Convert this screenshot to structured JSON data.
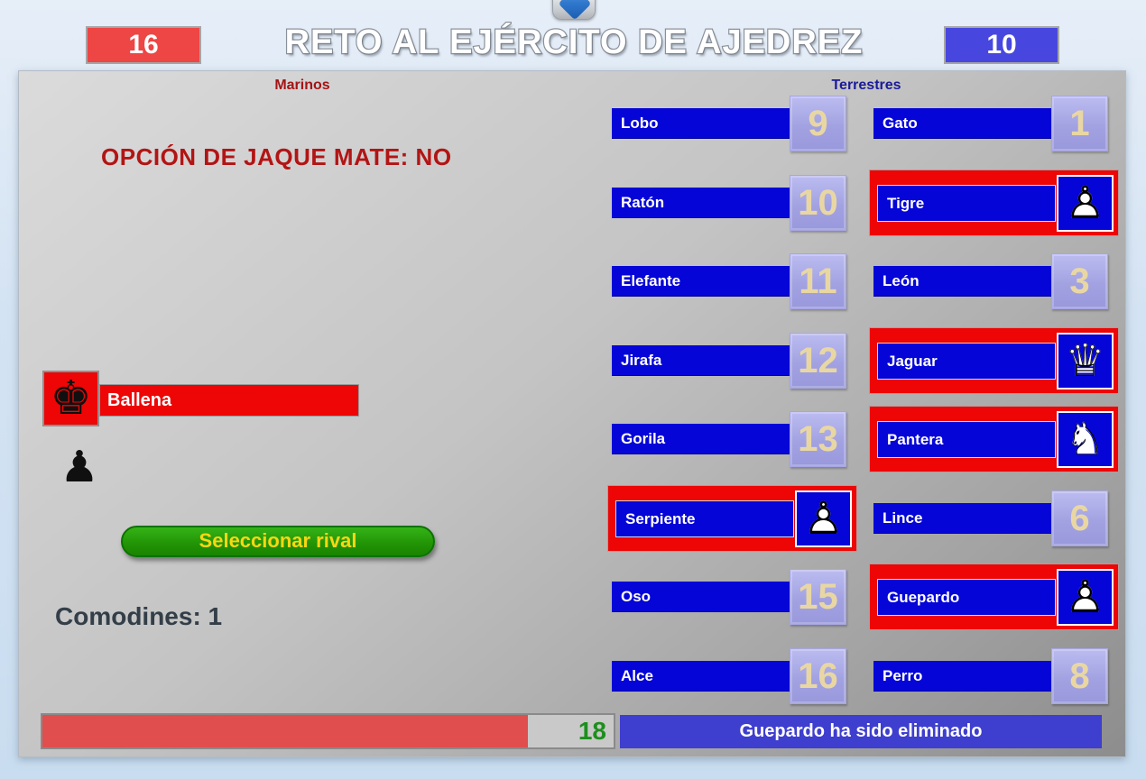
{
  "header": {
    "red_score": "16",
    "title": "RETO AL EJÉRCITO DE AJEDREZ",
    "blue_score": "10"
  },
  "column_headers": {
    "left": "Marinos",
    "right": "Terrestres"
  },
  "left_panel": {
    "option_text": "OPCIÓN DE JAQUE MATE: NO",
    "player": {
      "name": "Ballena",
      "piece": "king"
    },
    "captured_piece": "pawn",
    "select_button_label": "Seleccionar rival",
    "comodines_text": "Comodines: 1"
  },
  "right_panel": {
    "columns": [
      {
        "units": [
          {
            "name": "Lobo",
            "value": "9"
          },
          {
            "name": "Ratón",
            "value": "10"
          },
          {
            "name": "Elefante",
            "value": "11"
          },
          {
            "name": "Jirafa",
            "value": "12"
          },
          {
            "name": "Gorila",
            "value": "13"
          },
          {
            "name": "Serpiente",
            "piece": "pawn",
            "eliminated": true
          },
          {
            "name": "Oso",
            "value": "15"
          },
          {
            "name": "Alce",
            "value": "16"
          }
        ]
      },
      {
        "units": [
          {
            "name": "Gato",
            "value": "1"
          },
          {
            "name": "Tigre",
            "piece": "pawn",
            "eliminated": true
          },
          {
            "name": "León",
            "value": "3"
          },
          {
            "name": "Jaguar",
            "piece": "queen",
            "eliminated": true
          },
          {
            "name": "Pantera",
            "piece": "knight",
            "eliminated": true
          },
          {
            "name": "Lince",
            "value": "6"
          },
          {
            "name": "Guepardo",
            "piece": "pawn",
            "eliminated": true
          },
          {
            "name": "Perro",
            "value": "8"
          }
        ]
      }
    ]
  },
  "pieces": {
    "pawn": {
      "fill": "♟",
      "line": "♙"
    },
    "queen": {
      "fill": "♛",
      "line": "♕"
    },
    "knight": {
      "fill": "♞",
      "line": "♘"
    },
    "king": {
      "fill": "♚",
      "line": ""
    },
    "captured_pawn": "♟"
  },
  "footer": {
    "progress_value": "18",
    "progress_percent": 85,
    "message": "Guepardo ha sido eliminado"
  },
  "colors": {
    "marine_red": "#ee0505",
    "land_blue": "#0505d8",
    "score_red": "#ee4545",
    "score_blue": "#4747e0",
    "number_tile_lavender": "#a3a3e6",
    "number_text_tan": "#e9d7a3",
    "button_green": "#23a30b",
    "button_text_yellow": "#f8d714",
    "progress_red": "#e14e4e",
    "progress_value_green": "#1d8f1d",
    "message_blue": "#3e3ecf"
  }
}
